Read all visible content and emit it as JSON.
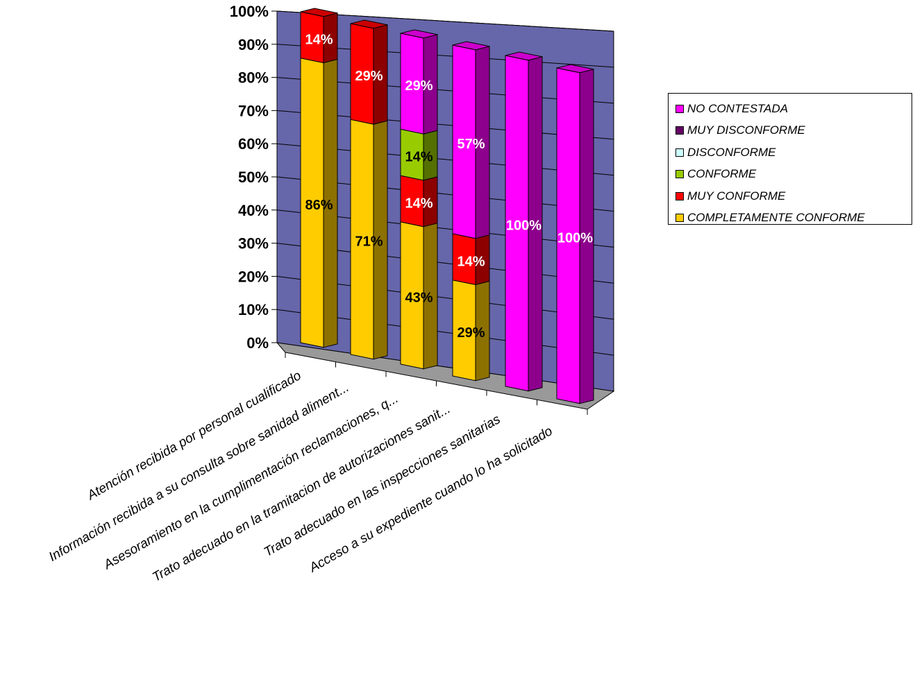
{
  "chart_data": {
    "type": "bar",
    "stacked": true,
    "percent": true,
    "three_d": true,
    "categories": [
      "Atención recibida por personal cualificado",
      "Información recibida a su consulta sobre sanidad aliment...",
      "Asesoramiento en la cumplimentación reclamaciones, q...",
      "Trato adecuado en la tramitacion de autorizaciones sanit...",
      "Trato adecuado en las inspecciones sanitarias",
      "Acceso a su expediente cuando lo ha solicitado"
    ],
    "series": [
      {
        "name": "COMPLETAMENTE CONFORME",
        "color": "#FFCC00",
        "values": [
          86,
          71,
          43,
          29,
          0,
          0
        ],
        "labels": [
          "86%",
          "71%",
          "43%",
          "29%",
          "",
          ""
        ]
      },
      {
        "name": "MUY CONFORME",
        "color": "#FF0000",
        "values": [
          14,
          29,
          14,
          14,
          0,
          0
        ],
        "labels": [
          "14%",
          "29%",
          "14%",
          "14%",
          "",
          ""
        ]
      },
      {
        "name": "CONFORME",
        "color": "#99CC00",
        "values": [
          0,
          0,
          14,
          0,
          0,
          0
        ],
        "labels": [
          "",
          "",
          "14%",
          "",
          "",
          ""
        ]
      },
      {
        "name": "DISCONFORME",
        "color": "#CCFFFF",
        "values": [
          0,
          0,
          0,
          0,
          0,
          0
        ],
        "labels": [
          "",
          "",
          "",
          "",
          "",
          ""
        ]
      },
      {
        "name": "MUY DISCONFORME",
        "color": "#660066",
        "values": [
          0,
          0,
          0,
          0,
          0,
          0
        ],
        "labels": [
          "",
          "",
          "",
          "",
          "",
          ""
        ]
      },
      {
        "name": "NO CONTESTADA",
        "color": "#FF00FF",
        "values": [
          0,
          0,
          29,
          57,
          100,
          100
        ],
        "labels": [
          "",
          "",
          "29%",
          "57%",
          "100%",
          "100%"
        ]
      }
    ],
    "y_ticks": [
      "0%",
      "10%",
      "20%",
      "30%",
      "40%",
      "50%",
      "60%",
      "70%",
      "80%",
      "90%",
      "100%"
    ],
    "ylim": [
      0,
      100
    ],
    "grid": true,
    "legend_position": "right",
    "legend_order": [
      "NO CONTESTADA",
      "MUY DISCONFORME",
      "DISCONFORME",
      "CONFORME",
      "MUY CONFORME",
      "COMPLETAMENTE CONFORME"
    ],
    "colors": {
      "back_wall": "#6666AA",
      "floor": "#999999",
      "gridline": "#000000"
    }
  }
}
